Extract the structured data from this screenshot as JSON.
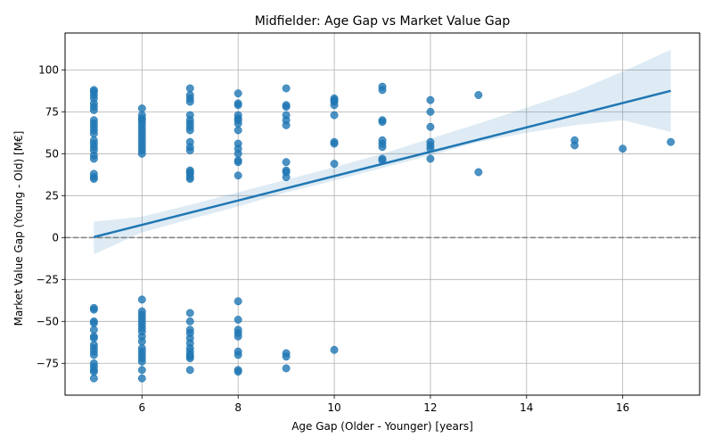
{
  "chart_data": {
    "type": "scatter",
    "title": "Midfielder: Age Gap vs Market Value Gap",
    "xlabel": "Age Gap (Older - Younger) [years]",
    "ylabel": "Market Value Gap (Young - Old) [M€]",
    "xlim": [
      4.4,
      17.6
    ],
    "ylim": [
      -94,
      122
    ],
    "xticks": [
      6,
      8,
      10,
      12,
      14,
      16
    ],
    "yticks": [
      -75,
      -50,
      -25,
      0,
      25,
      50,
      75,
      100
    ],
    "grid": true,
    "reference_line": {
      "y": 0,
      "style": "dashed",
      "color": "#808080"
    },
    "point_color": "#1f77b4",
    "fit_line": {
      "x": [
        5,
        17
      ],
      "y": [
        0.3,
        87.5
      ],
      "color": "#1f77b4"
    },
    "confidence_band": {
      "x": [
        5,
        6,
        7,
        8,
        9,
        10,
        11,
        12,
        13,
        14,
        15,
        16,
        17
      ],
      "upper": [
        9.5,
        12.5,
        19.5,
        27,
        34.5,
        42,
        50,
        59,
        68,
        77.5,
        87,
        99,
        112
      ],
      "lower": [
        -10,
        3,
        11,
        18.5,
        27,
        34,
        41.5,
        49,
        57,
        62.5,
        67,
        70,
        63
      ],
      "color": "#1f77b4"
    },
    "points": [
      [
        5,
        88
      ],
      [
        5,
        87
      ],
      [
        5,
        85
      ],
      [
        5,
        83
      ],
      [
        5,
        80
      ],
      [
        5,
        78
      ],
      [
        5,
        76
      ],
      [
        5,
        70
      ],
      [
        5,
        68
      ],
      [
        5,
        66
      ],
      [
        5,
        64
      ],
      [
        5,
        62
      ],
      [
        5,
        58
      ],
      [
        5,
        56
      ],
      [
        5,
        54
      ],
      [
        5,
        52
      ],
      [
        5,
        49
      ],
      [
        5,
        47
      ],
      [
        5,
        38
      ],
      [
        5,
        36
      ],
      [
        5,
        35
      ],
      [
        5,
        -42
      ],
      [
        5,
        -43
      ],
      [
        5,
        -50
      ],
      [
        5,
        -51
      ],
      [
        5,
        -55
      ],
      [
        5,
        -59
      ],
      [
        5,
        -60
      ],
      [
        5,
        -64
      ],
      [
        5,
        -66
      ],
      [
        5,
        -68
      ],
      [
        5,
        -70
      ],
      [
        5,
        -75
      ],
      [
        5,
        -77
      ],
      [
        5,
        -79
      ],
      [
        5,
        -80
      ],
      [
        5,
        -84
      ],
      [
        6,
        77
      ],
      [
        6,
        73
      ],
      [
        6,
        71
      ],
      [
        6,
        70
      ],
      [
        6,
        68
      ],
      [
        6,
        66
      ],
      [
        6,
        64
      ],
      [
        6,
        62
      ],
      [
        6,
        60
      ],
      [
        6,
        58
      ],
      [
        6,
        56
      ],
      [
        6,
        54
      ],
      [
        6,
        52
      ],
      [
        6,
        50
      ],
      [
        6,
        -37
      ],
      [
        6,
        -44
      ],
      [
        6,
        -46
      ],
      [
        6,
        -48
      ],
      [
        6,
        -50
      ],
      [
        6,
        -52
      ],
      [
        6,
        -54
      ],
      [
        6,
        -56
      ],
      [
        6,
        -59
      ],
      [
        6,
        -62
      ],
      [
        6,
        -66
      ],
      [
        6,
        -68
      ],
      [
        6,
        -70
      ],
      [
        6,
        -72
      ],
      [
        6,
        -74
      ],
      [
        6,
        -79
      ],
      [
        6,
        -84
      ],
      [
        7,
        89
      ],
      [
        7,
        85
      ],
      [
        7,
        83
      ],
      [
        7,
        81
      ],
      [
        7,
        73
      ],
      [
        7,
        70
      ],
      [
        7,
        68
      ],
      [
        7,
        66
      ],
      [
        7,
        64
      ],
      [
        7,
        57
      ],
      [
        7,
        54
      ],
      [
        7,
        52
      ],
      [
        7,
        40
      ],
      [
        7,
        39
      ],
      [
        7,
        38
      ],
      [
        7,
        36
      ],
      [
        7,
        35
      ],
      [
        7,
        -45
      ],
      [
        7,
        -50
      ],
      [
        7,
        -55
      ],
      [
        7,
        -57
      ],
      [
        7,
        -60
      ],
      [
        7,
        -63
      ],
      [
        7,
        -66
      ],
      [
        7,
        -68
      ],
      [
        7,
        -70
      ],
      [
        7,
        -71
      ],
      [
        7,
        -72
      ],
      [
        7,
        -79
      ],
      [
        8,
        86
      ],
      [
        8,
        80
      ],
      [
        8,
        79
      ],
      [
        8,
        73
      ],
      [
        8,
        71
      ],
      [
        8,
        70
      ],
      [
        8,
        68
      ],
      [
        8,
        64
      ],
      [
        8,
        56
      ],
      [
        8,
        53
      ],
      [
        8,
        50
      ],
      [
        8,
        46
      ],
      [
        8,
        45
      ],
      [
        8,
        37
      ],
      [
        8,
        -38
      ],
      [
        8,
        -49
      ],
      [
        8,
        -55
      ],
      [
        8,
        -57
      ],
      [
        8,
        -59
      ],
      [
        8,
        -68
      ],
      [
        8,
        -70
      ],
      [
        8,
        -79
      ],
      [
        8,
        -80
      ],
      [
        9,
        89
      ],
      [
        9,
        79
      ],
      [
        9,
        78
      ],
      [
        9,
        73
      ],
      [
        9,
        70
      ],
      [
        9,
        67
      ],
      [
        9,
        45
      ],
      [
        9,
        40
      ],
      [
        9,
        39
      ],
      [
        9,
        36
      ],
      [
        9,
        -69
      ],
      [
        9,
        -71
      ],
      [
        9,
        -78
      ],
      [
        10,
        83
      ],
      [
        10,
        82
      ],
      [
        10,
        81
      ],
      [
        10,
        79
      ],
      [
        10,
        73
      ],
      [
        10,
        57
      ],
      [
        10,
        56
      ],
      [
        10,
        44
      ],
      [
        10,
        -67
      ],
      [
        11,
        90
      ],
      [
        11,
        88
      ],
      [
        11,
        70
      ],
      [
        11,
        69
      ],
      [
        11,
        58
      ],
      [
        11,
        56
      ],
      [
        11,
        54
      ],
      [
        11,
        47
      ],
      [
        11,
        46
      ],
      [
        12,
        82
      ],
      [
        12,
        75
      ],
      [
        12,
        66
      ],
      [
        12,
        57
      ],
      [
        12,
        55
      ],
      [
        12,
        53
      ],
      [
        12,
        47
      ],
      [
        13,
        85
      ],
      [
        13,
        39
      ],
      [
        15,
        58
      ],
      [
        15,
        55
      ],
      [
        16,
        53
      ],
      [
        17,
        57
      ]
    ]
  }
}
